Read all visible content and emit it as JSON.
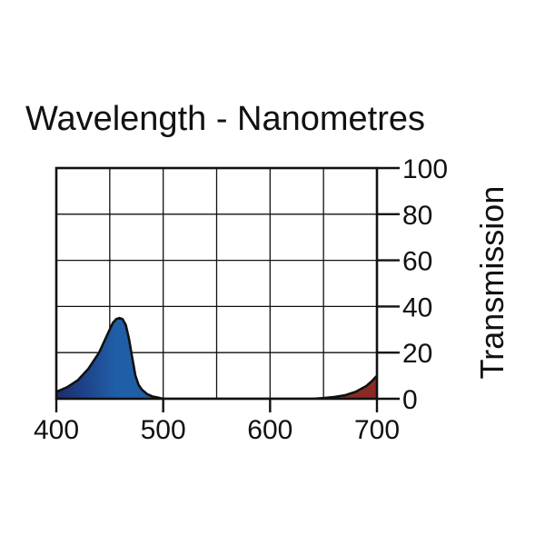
{
  "chart_data": {
    "type": "area",
    "title": "Wavelength - Nanometres",
    "xlabel": "Wavelength - Nanometres",
    "ylabel": "Transmission",
    "xlim": [
      400,
      700
    ],
    "ylim": [
      0,
      100
    ],
    "x_ticks": [
      400,
      500,
      600,
      700
    ],
    "x_grid": [
      400,
      450,
      500,
      550,
      600,
      650,
      700
    ],
    "y_ticks": [
      0,
      20,
      40,
      60,
      80,
      100
    ],
    "grid": true,
    "y_axis_side": "right",
    "series": [
      {
        "name": "Transmission",
        "x": [
          400,
          410,
          420,
          430,
          440,
          445,
          450,
          453,
          456,
          459,
          462,
          465,
          468,
          471,
          474,
          477,
          480,
          485,
          490,
          495,
          500,
          520,
          550,
          600,
          640,
          650,
          660,
          670,
          680,
          690,
          695,
          700
        ],
        "y": [
          3,
          5,
          8,
          13,
          20,
          25,
          30,
          33,
          34.5,
          35,
          34.5,
          32,
          26,
          18,
          10,
          6,
          4,
          2,
          1,
          0.5,
          0,
          0,
          0,
          0,
          0,
          0.3,
          0.8,
          1.5,
          3,
          5.5,
          7.5,
          10
        ]
      }
    ]
  },
  "colors": {
    "axis": "#111111",
    "grid": "#111111",
    "fill_blue_dark": "#1e2a6e",
    "fill_blue_mid": "#1f5fa8",
    "fill_blue_light": "#3aa9e6",
    "fill_red_light": "#c47a6c",
    "fill_red_dark": "#8b2a24"
  }
}
